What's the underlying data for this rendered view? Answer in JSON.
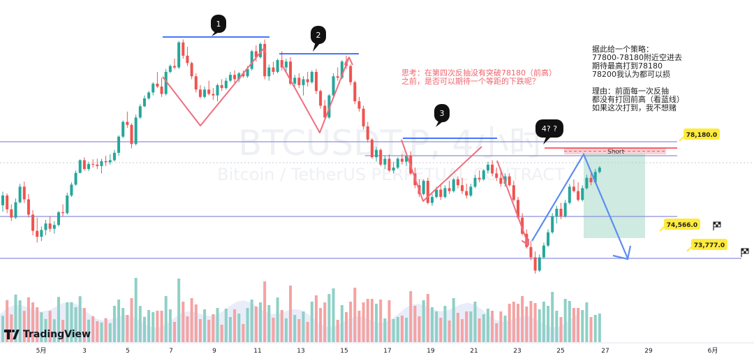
{
  "watermark": {
    "symbol": "BTCUSDT.P, 4小时",
    "name": "Bitcoin / TetherUS PERPETUAL CONTRACT"
  },
  "notes": {
    "red": "思考：在第四次反抽没有突破78180（前高）\n之前，是否可以期待一个等距的下跌呢？",
    "black": "据此给一个策略：\n77800-78180附近空进去\n期待最高打到78180\n78200我认为都可以损\n\n理由：前面每一次反抽\n都没有打回前高（看蓝线）\n如果这次打到，我不想赌"
  },
  "callouts": [
    "1",
    "2",
    "3",
    "4? ?"
  ],
  "position_label": "Short",
  "price_labels": {
    "stop": "78,180.0",
    "target1": "74,566.0",
    "target2": "73,777.0"
  },
  "brand": "TradingView",
  "colors": {
    "up": "#26a69a",
    "down": "#ef5350",
    "level": "#8c8fd9",
    "resistance": "#2962ff",
    "stop": "#f23645",
    "tag": "#ffeb3b",
    "profit": "#a6d8c9"
  },
  "chart_data": {
    "type": "candlestick",
    "timeframe": "4h",
    "x_ticks": [
      "5月",
      "3",
      "5",
      "7",
      "9",
      "11",
      "13",
      "15",
      "17",
      "19",
      "21",
      "23",
      "25",
      "27",
      "29",
      "6月"
    ],
    "price_levels": [
      78180.0,
      74566.0,
      73777.0
    ],
    "trade": {
      "side": "short",
      "entry_zone": [
        77800,
        78180
      ],
      "stop": 78180.0,
      "targets": [
        74566.0,
        73777.0
      ]
    },
    "ohlc": [
      [
        76320,
        76780,
        76100,
        76650
      ],
      [
        76650,
        76720,
        76050,
        76180
      ],
      [
        76180,
        76350,
        75780,
        75900
      ],
      [
        75900,
        76550,
        75850,
        76420
      ],
      [
        76420,
        77050,
        76380,
        76950
      ],
      [
        76950,
        77120,
        76400,
        76520
      ],
      [
        76520,
        76700,
        75900,
        76000
      ],
      [
        76000,
        76150,
        75300,
        75450
      ],
      [
        75450,
        75900,
        75050,
        75250
      ],
      [
        75250,
        75600,
        75100,
        75480
      ],
      [
        75480,
        75820,
        75300,
        75700
      ],
      [
        75700,
        75950,
        75420,
        75520
      ],
      [
        75520,
        75780,
        75350,
        75650
      ],
      [
        75650,
        76120,
        75600,
        76080
      ],
      [
        76080,
        76350,
        75950,
        76050
      ],
      [
        76050,
        76750,
        76000,
        76650
      ],
      [
        76650,
        77100,
        76600,
        77020
      ],
      [
        77020,
        77500,
        76980,
        77420
      ],
      [
        77420,
        77880,
        77400,
        77850
      ],
      [
        77850,
        77950,
        77500,
        77550
      ],
      [
        77550,
        77800,
        77480,
        77720
      ],
      [
        77720,
        77880,
        77600,
        77700
      ],
      [
        77700,
        77900,
        77550,
        77650
      ],
      [
        77650,
        77900,
        77400,
        77820
      ],
      [
        77820,
        78000,
        77650,
        77780
      ],
      [
        77780,
        78050,
        77700,
        77850
      ],
      [
        77850,
        78200,
        77800,
        78100
      ],
      [
        78100,
        78700,
        78000,
        78650
      ],
      [
        78650,
        79200,
        78600,
        79150
      ],
      [
        79150,
        79500,
        78950,
        79050
      ],
      [
        79050,
        79100,
        78250,
        78400
      ],
      [
        78400,
        79400,
        78350,
        79300
      ],
      [
        79300,
        79750,
        79250,
        79680
      ],
      [
        79680,
        80050,
        79650,
        79950
      ],
      [
        79950,
        80200,
        79900,
        80150
      ],
      [
        80150,
        80500,
        80050,
        80450
      ],
      [
        80450,
        80850,
        80300,
        80350
      ],
      [
        80350,
        80650,
        80000,
        80100
      ],
      [
        80100,
        80950,
        80050,
        80850
      ],
      [
        80850,
        81100,
        80800,
        81050
      ],
      [
        81050,
        81300,
        80950,
        81000
      ],
      [
        81000,
        81900,
        80950,
        81850
      ],
      [
        81850,
        81950,
        81300,
        81400
      ],
      [
        81400,
        81700,
        81050,
        81150
      ],
      [
        81150,
        81200,
        80600,
        80700
      ],
      [
        80700,
        80800,
        80150,
        80250
      ],
      [
        80250,
        80400,
        79950,
        80000
      ],
      [
        80000,
        80350,
        79950,
        80250
      ],
      [
        80250,
        80550,
        80050,
        80100
      ],
      [
        80100,
        80300,
        79900,
        80050
      ],
      [
        80050,
        80450,
        79850,
        80400
      ],
      [
        80400,
        80600,
        80200,
        80300
      ],
      [
        80300,
        80650,
        80250,
        80550
      ],
      [
        80550,
        80850,
        80500,
        80750
      ],
      [
        80750,
        80900,
        80450,
        80600
      ],
      [
        80600,
        80850,
        80500,
        80800
      ],
      [
        80800,
        80900,
        80650,
        80700
      ],
      [
        80700,
        81050,
        80650,
        80950
      ],
      [
        80950,
        81600,
        80900,
        81550
      ],
      [
        81550,
        81750,
        81200,
        81350
      ],
      [
        81350,
        81850,
        81300,
        81800
      ],
      [
        81800,
        81950,
        80600,
        80700
      ],
      [
        80700,
        81100,
        80550,
        81000
      ],
      [
        81000,
        81200,
        80750,
        80850
      ],
      [
        80850,
        81300,
        80800,
        81250
      ],
      [
        81250,
        81550,
        80900,
        81000
      ],
      [
        81000,
        81300,
        80850,
        81200
      ],
      [
        81200,
        81350,
        80400,
        80450
      ],
      [
        80450,
        80750,
        80350,
        80650
      ],
      [
        80650,
        80800,
        80300,
        80400
      ],
      [
        80400,
        80700,
        80050,
        80600
      ],
      [
        80600,
        80850,
        80350,
        80500
      ],
      [
        80500,
        80900,
        80450,
        80850
      ],
      [
        80850,
        80950,
        80100,
        80200
      ],
      [
        80200,
        80250,
        79600,
        79700
      ],
      [
        79700,
        79900,
        79200,
        79300
      ],
      [
        79300,
        80100,
        79250,
        80050
      ],
      [
        80050,
        80800,
        80000,
        80700
      ],
      [
        80700,
        81000,
        80550,
        80650
      ],
      [
        80650,
        81250,
        80600,
        81200
      ],
      [
        81200,
        81400,
        80950,
        81050
      ],
      [
        81050,
        81100,
        80400,
        80500
      ],
      [
        80500,
        80550,
        79750,
        79850
      ],
      [
        79850,
        80000,
        79500,
        79600
      ],
      [
        79600,
        79700,
        78900,
        79000
      ],
      [
        79000,
        79150,
        78450,
        78550
      ],
      [
        78550,
        78600,
        77900,
        77950
      ],
      [
        77950,
        78300,
        77800,
        78200
      ],
      [
        78200,
        78250,
        77650,
        77700
      ],
      [
        77700,
        78000,
        77550,
        77900
      ],
      [
        77900,
        78050,
        77450,
        77500
      ],
      [
        77500,
        77800,
        77400,
        77600
      ],
      [
        77600,
        77950,
        77550,
        77900
      ],
      [
        77900,
        78050,
        77700,
        77800
      ],
      [
        77800,
        78100,
        77650,
        78000
      ],
      [
        78000,
        78150,
        77350,
        77400
      ],
      [
        77400,
        77600,
        76900,
        77000
      ],
      [
        77000,
        77200,
        76600,
        76700
      ],
      [
        76700,
        77200,
        76650,
        77150
      ],
      [
        77150,
        77250,
        76350,
        76400
      ],
      [
        76400,
        76700,
        76300,
        76600
      ],
      [
        76600,
        76950,
        76550,
        76850
      ],
      [
        76850,
        77050,
        76500,
        76600
      ],
      [
        76600,
        77000,
        76550,
        76900
      ],
      [
        76900,
        77150,
        76700,
        76800
      ],
      [
        76800,
        77250,
        76750,
        77200
      ],
      [
        77200,
        77300,
        76900,
        77000
      ],
      [
        77000,
        77250,
        76700,
        76800
      ],
      [
        76800,
        77050,
        76550,
        76650
      ],
      [
        76650,
        77050,
        76600,
        76950
      ],
      [
        76950,
        77350,
        76900,
        77250
      ],
      [
        77250,
        77500,
        77100,
        77200
      ],
      [
        77200,
        77550,
        77150,
        77500
      ],
      [
        77500,
        77800,
        77400,
        77700
      ],
      [
        77700,
        77850,
        77300,
        77400
      ],
      [
        77400,
        77600,
        77150,
        77250
      ],
      [
        77250,
        77450,
        76950,
        77050
      ],
      [
        77050,
        77400,
        76950,
        77300
      ],
      [
        77300,
        77400,
        76950,
        77000
      ],
      [
        77000,
        77150,
        76450,
        76500
      ],
      [
        76500,
        76600,
        75850,
        75900
      ],
      [
        75900,
        76050,
        75300,
        75350
      ],
      [
        75350,
        75500,
        74850,
        74900
      ],
      [
        74900,
        75100,
        74450,
        74550
      ],
      [
        74550,
        74750,
        74000,
        74100
      ],
      [
        74100,
        74650,
        74050,
        74550
      ],
      [
        74550,
        75050,
        74500,
        74950
      ],
      [
        74950,
        75500,
        74900,
        75400
      ],
      [
        75400,
        76050,
        75350,
        75950
      ],
      [
        75950,
        76300,
        75700,
        76200
      ],
      [
        76200,
        76400,
        75850,
        75950
      ],
      [
        75950,
        76500,
        75900,
        76400
      ],
      [
        76400,
        77050,
        76350,
        76950
      ],
      [
        76950,
        77200,
        76750,
        76800
      ],
      [
        76800,
        77100,
        76450,
        76500
      ],
      [
        76500,
        77000,
        76450,
        76900
      ],
      [
        76900,
        77350,
        76850,
        77250
      ],
      [
        77250,
        77400,
        77000,
        77100
      ],
      [
        77100,
        77550,
        77050,
        77450
      ],
      [
        77450,
        77650,
        77400,
        77600
      ]
    ]
  }
}
